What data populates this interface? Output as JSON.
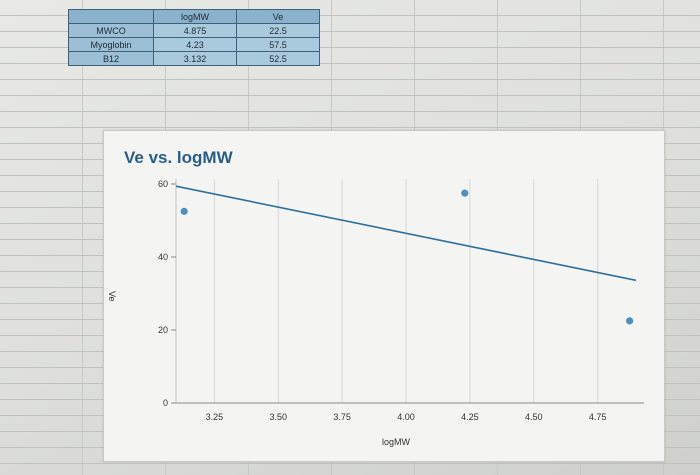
{
  "table": {
    "headers": [
      "",
      "logMW",
      "Ve"
    ],
    "rows": [
      {
        "label": "MWCO",
        "logMW": "4.875",
        "Ve": "22.5"
      },
      {
        "label": "Myoglobin",
        "logMW": "4.23",
        "Ve": "57.5"
      },
      {
        "label": "B12",
        "logMW": "3.132",
        "Ve": "52.5"
      }
    ]
  },
  "chart_data": {
    "type": "scatter",
    "title": "Ve vs. logMW",
    "xlabel": "logMW",
    "ylabel": "Ve",
    "xlim": [
      3.1,
      4.9
    ],
    "ylim": [
      0,
      60
    ],
    "xticks": [
      "3.25",
      "3.50",
      "3.75",
      "4.00",
      "4.25",
      "4.50",
      "4.75"
    ],
    "yticks": [
      "0",
      "20",
      "40",
      "60"
    ],
    "grid": "vertical",
    "points": [
      {
        "x": 3.132,
        "y": 52.5
      },
      {
        "x": 4.23,
        "y": 57.5
      },
      {
        "x": 4.875,
        "y": 22.5
      }
    ],
    "trendline": {
      "x": [
        3.1,
        4.9
      ],
      "y": [
        59.4,
        33.6
      ]
    },
    "colors": {
      "points": "#4f8fc0",
      "trendline": "#2f6f99",
      "title": "#2a5e86"
    }
  }
}
